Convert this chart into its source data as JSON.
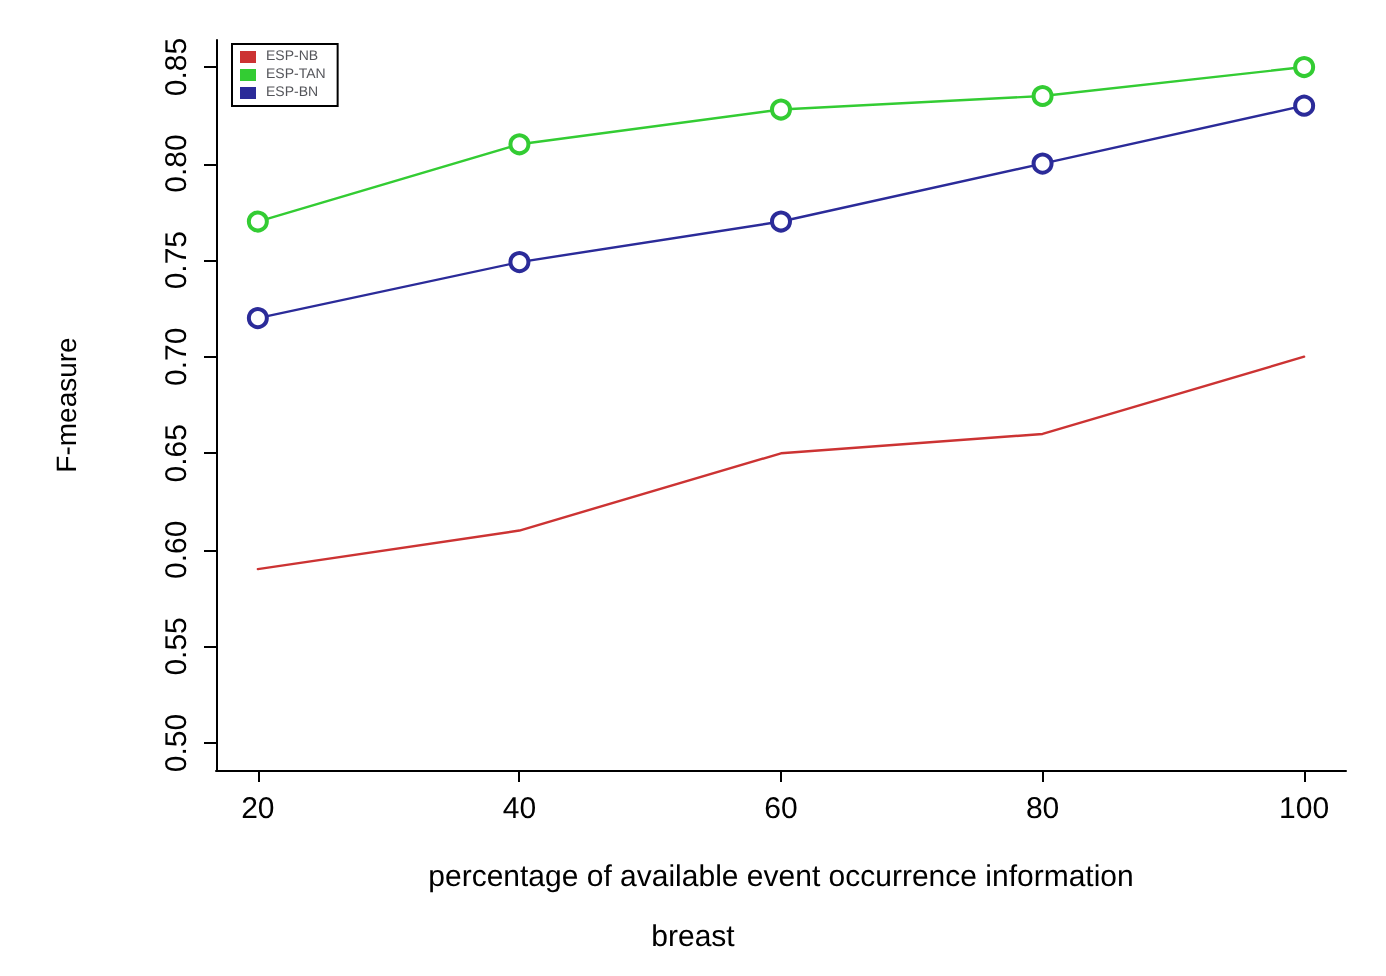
{
  "chart_data": {
    "type": "line",
    "subtitle": "breast",
    "xlabel": "percentage of available event occurrence information",
    "ylabel": "F-measure",
    "x": [
      20,
      40,
      60,
      80,
      100
    ],
    "series": [
      {
        "name": "ESP-NB",
        "color": "#cc3333",
        "marker": "none",
        "values": [
          0.59,
          0.61,
          0.65,
          0.66,
          0.7
        ]
      },
      {
        "name": "ESP-TAN",
        "color": "#33cc33",
        "marker": "circle",
        "values": [
          0.77,
          0.81,
          0.828,
          0.835,
          0.85
        ]
      },
      {
        "name": "ESP-BN",
        "color": "#2b2b99",
        "marker": "circle",
        "values": [
          0.72,
          0.749,
          0.77,
          0.8,
          0.83
        ]
      }
    ],
    "xlim": [
      16.8,
      103.2
    ],
    "xticks": [
      20,
      40,
      60,
      80,
      100
    ],
    "ylim": [
      0.486,
      0.864
    ],
    "yticks": [
      {
        "value": 0.5,
        "label": "0.50"
      },
      {
        "value": 0.55,
        "label": "0.55"
      },
      {
        "value": 0.6,
        "label": "0.60"
      },
      {
        "value": 0.65,
        "label": "0.65"
      },
      {
        "value": 0.7,
        "label": "0.70"
      },
      {
        "value": 0.75,
        "label": "0.75"
      },
      {
        "value": 0.8,
        "label": "0.80"
      },
      {
        "value": 0.85,
        "label": "0.85"
      }
    ],
    "legend": "top left",
    "grid": false
  }
}
